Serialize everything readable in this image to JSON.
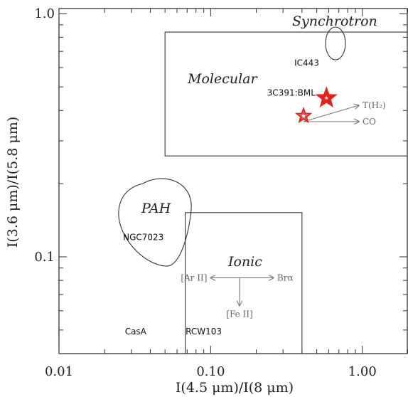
{
  "chart_data": {
    "type": "scatter",
    "title": "",
    "xlabel": "I(4.5 μm)/I(8 μm)",
    "ylabel": "I(3.6 μm)/I(5.8 μm)",
    "xscale": "log",
    "yscale": "log",
    "xlim": [
      0.01,
      2.0
    ],
    "ylim": [
      0.04,
      1.05
    ],
    "x_ticks": [
      {
        "value": 0.01,
        "label": "0.01"
      },
      {
        "value": 0.1,
        "label": "0.10"
      },
      {
        "value": 1.0,
        "label": "1.00"
      }
    ],
    "y_ticks": [
      {
        "value": 0.1,
        "label": "0.1"
      },
      {
        "value": 1.0,
        "label": "1.0"
      }
    ],
    "regions": [
      {
        "name": "Molecular",
        "shape": "box",
        "x": [
          0.05,
          2.0
        ],
        "y": [
          0.26,
          0.84
        ]
      },
      {
        "name": "Ionic",
        "shape": "box",
        "x": [
          0.068,
          0.4
        ],
        "y": [
          0.04,
          0.152
        ]
      },
      {
        "name": "PAH",
        "shape": "loop",
        "center": [
          0.04,
          0.14
        ]
      },
      {
        "name": "Synchrotron",
        "shape": "ellipse",
        "center": [
          0.68,
          0.69
        ]
      }
    ],
    "sources": [
      {
        "label": "IC443",
        "x": 0.43,
        "y": 0.61
      },
      {
        "label": "3C391:BML",
        "x": 0.34,
        "y": 0.46
      },
      {
        "label": "NGC7023",
        "x": 0.036,
        "y": 0.117
      },
      {
        "label": "CasA",
        "x": 0.032,
        "y": 0.048
      },
      {
        "label": "RCW103",
        "x": 0.09,
        "y": 0.048
      }
    ],
    "points": [
      {
        "x": 0.58,
        "y": 0.45,
        "style": "filled-star",
        "color": "#e2231a"
      },
      {
        "x": 0.41,
        "y": 0.38,
        "style": "open-star",
        "color": "#e2231a"
      }
    ],
    "arrows": [
      {
        "label": "T(H₂)",
        "from": [
          0.41,
          0.36
        ],
        "to": [
          0.95,
          0.42
        ]
      },
      {
        "label": "CO",
        "from": [
          0.41,
          0.36
        ],
        "to": [
          0.95,
          0.36
        ]
      },
      {
        "label": "[Ar II]",
        "from": [
          0.16,
          0.082
        ],
        "to": [
          0.1,
          0.082
        ]
      },
      {
        "label": "Brα",
        "from": [
          0.16,
          0.082
        ],
        "to": [
          0.26,
          0.082
        ]
      },
      {
        "label": "[Fe II]",
        "from": [
          0.155,
          0.082
        ],
        "to": [
          0.155,
          0.063
        ]
      }
    ]
  }
}
